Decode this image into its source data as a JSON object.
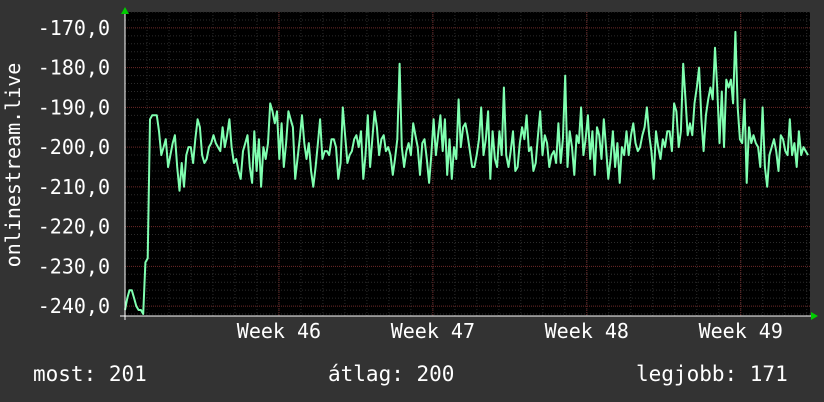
{
  "chart_data": {
    "type": "line",
    "ylabel": "onlinestream.live",
    "ylim": [
      -242.5,
      -166
    ],
    "y_ticks": [
      -170,
      -180,
      -190,
      -200,
      -210,
      -220,
      -230,
      -240
    ],
    "y_tick_labels": [
      "-170,0",
      "-180,0",
      "-190,0",
      "-200,0",
      "-210,0",
      "-220,0",
      "-230,0",
      "-240,0"
    ],
    "x_tick_labels": [
      "Week 46",
      "Week 47",
      "Week 48",
      "Week 49"
    ],
    "x_tick_positions": [
      1,
      2,
      3,
      4
    ],
    "xlim": [
      0,
      4.45
    ],
    "grid": true,
    "line_color": "#80ffb0",
    "series": [
      {
        "values": [
          -241,
          -238,
          -236,
          -236,
          -238,
          -240,
          -241,
          -241,
          -242,
          -229,
          -228,
          -193,
          -192,
          -192,
          -192,
          -196,
          -202,
          -200,
          -198,
          -205,
          -202,
          -199,
          -197,
          -205,
          -211,
          -204,
          -210,
          -202,
          -200,
          -200,
          -204,
          -198,
          -193,
          -195,
          -202,
          -204,
          -203,
          -200,
          -199,
          -197,
          -199,
          -200,
          -201,
          -195,
          -200,
          -197,
          -193,
          -200,
          -204,
          -203,
          -206,
          -208,
          -201,
          -199,
          -197,
          -205,
          -209,
          -196,
          -206,
          -198,
          -210,
          -200,
          -203,
          -199,
          -189,
          -191,
          -194,
          -191,
          -203,
          -194,
          -205,
          -199,
          -191,
          -193,
          -195,
          -208,
          -203,
          -198,
          -192,
          -199,
          -203,
          -199,
          -206,
          -210,
          -205,
          -199,
          -193,
          -203,
          -201,
          -201,
          -202,
          -198,
          -198,
          -200,
          -208,
          -204,
          -190,
          -197,
          -204,
          -202,
          -201,
          -198,
          -197,
          -200,
          -196,
          -208,
          -202,
          -192,
          -205,
          -198,
          -191,
          -195,
          -202,
          -198,
          -197,
          -201,
          -200,
          -202,
          -207,
          -203,
          -198,
          -179,
          -200,
          -205,
          -201,
          -199,
          -202,
          -194,
          -197,
          -200,
          -207,
          -199,
          -198,
          -203,
          -209,
          -202,
          -193,
          -202,
          -197,
          -192,
          -201,
          -193,
          -207,
          -198,
          -208,
          -200,
          -203,
          -188,
          -200,
          -195,
          -194,
          -197,
          -201,
          -205,
          -205,
          -202,
          -198,
          -190,
          -202,
          -198,
          -191,
          -208,
          -196,
          -203,
          -205,
          -196,
          -202,
          -185,
          -202,
          -205,
          -201,
          -196,
          -206,
          -205,
          -199,
          -195,
          -198,
          -192,
          -201,
          -200,
          -206,
          -204,
          -197,
          -191,
          -202,
          -197,
          -199,
          -205,
          -202,
          -201,
          -204,
          -194,
          -204,
          -198,
          -182,
          -205,
          -196,
          -200,
          -207,
          -197,
          -199,
          -190,
          -202,
          -198,
          -192,
          -203,
          -196,
          -207,
          -195,
          -197,
          -203,
          -193,
          -200,
          -208,
          -203,
          -196,
          -205,
          -199,
          -209,
          -200,
          -202,
          -196,
          -202,
          -197,
          -194,
          -199,
          -201,
          -200,
          -197,
          -195,
          -190,
          -197,
          -201,
          -208,
          -196,
          -200,
          -203,
          -198,
          -200,
          -196,
          -196,
          -201,
          -189,
          -191,
          -200,
          -196,
          -179,
          -188,
          -197,
          -194,
          -197,
          -189,
          -185,
          -180,
          -193,
          -201,
          -192,
          -188,
          -185,
          -188,
          -175,
          -185,
          -199,
          -186,
          -200,
          -183,
          -185,
          -183,
          -189,
          -171,
          -190,
          -198,
          -199,
          -188,
          -209,
          -195,
          -199,
          -197,
          -199,
          -200,
          -205,
          -190,
          -205,
          -210,
          -202,
          -200,
          -198,
          -201,
          -206,
          -197,
          -198,
          -201,
          -202,
          -193,
          -202,
          -199,
          -205,
          -196,
          -202,
          -200,
          -201,
          -202
        ]
      }
    ]
  },
  "stats": {
    "current": "most: 201",
    "average": "átlag: 200",
    "best": "legjobb: 171"
  }
}
